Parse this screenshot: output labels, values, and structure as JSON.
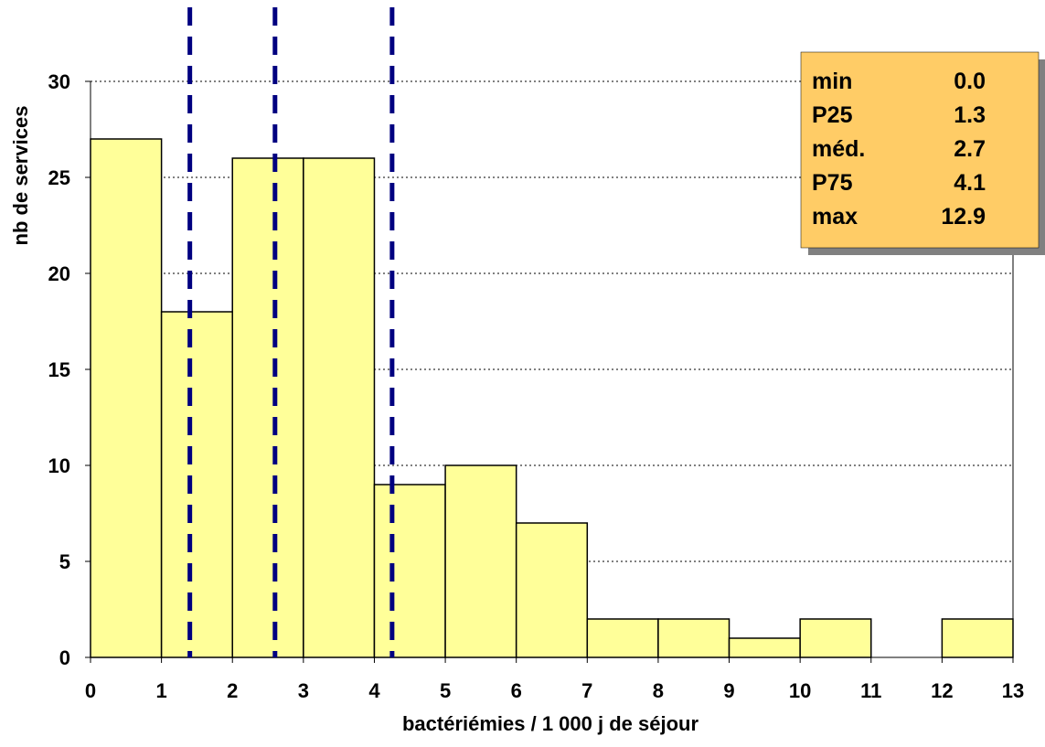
{
  "chart_data": {
    "type": "bar",
    "subtype": "histogram",
    "bin_edges": [
      0,
      1,
      2,
      3,
      4,
      5,
      6,
      7,
      8,
      9,
      10,
      11,
      12,
      13
    ],
    "values": [
      27,
      18,
      26,
      26,
      9,
      10,
      7,
      2,
      2,
      1,
      2,
      0,
      2
    ],
    "xlabel": "bactériémies / 1 000  j de séjour",
    "ylabel": "nb de services",
    "xlim": [
      0,
      13
    ],
    "ylim": [
      0,
      30
    ],
    "x_ticks": [
      "0",
      "1",
      "2",
      "3",
      "4",
      "5",
      "6",
      "7",
      "8",
      "9",
      "10",
      "11",
      "12",
      "13"
    ],
    "y_ticks": [
      "0",
      "5",
      "10",
      "15",
      "20",
      "25",
      "30"
    ],
    "grid": "horizontal dotted",
    "bar_color": "#FFFF99",
    "reference_lines": [
      {
        "x": 1.4,
        "style": "dashed",
        "color": "#000080"
      },
      {
        "x": 2.6,
        "style": "dashed",
        "color": "#000080"
      },
      {
        "x": 4.25,
        "style": "dashed",
        "color": "#000080"
      }
    ],
    "stats_box": {
      "placement": "top-right",
      "background": "#FFCC66",
      "rows": [
        {
          "label": "min",
          "value": "0.0"
        },
        {
          "label": "P25",
          "value": "1.3"
        },
        {
          "label": "méd.",
          "value": "2.7"
        },
        {
          "label": "P75",
          "value": "4.1"
        },
        {
          "label": "max",
          "value": "12.9"
        }
      ]
    }
  }
}
